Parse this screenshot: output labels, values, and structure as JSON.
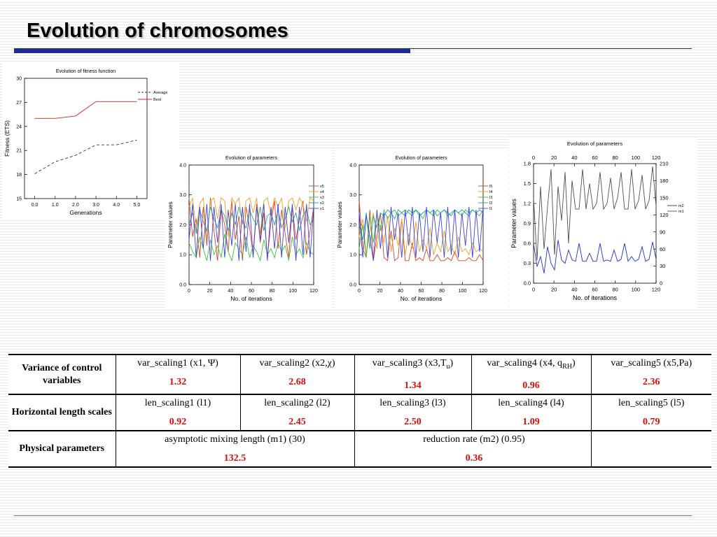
{
  "slide": {
    "title": "Evolution of chromosomes"
  },
  "chart_data": [
    {
      "id": "fitness",
      "type": "line",
      "title": "Evolution of fitness function",
      "xlabel": "Generations",
      "ylabel": "Fitness (ETS)",
      "xlim": [
        -0.5,
        5.5
      ],
      "ylim": [
        15,
        30
      ],
      "xticks": [
        "0.0",
        "1.0",
        "2.0",
        "3.0",
        "4.0",
        "5.0"
      ],
      "yticks": [
        "15",
        "18",
        "21",
        "24",
        "27",
        "30"
      ],
      "legend": "top-right",
      "series": [
        {
          "name": "Average",
          "color": "#333333",
          "dash": true,
          "x": [
            0,
            1,
            2,
            3,
            4,
            5
          ],
          "y": [
            18.1,
            19.6,
            20.4,
            21.7,
            21.7,
            22.3
          ]
        },
        {
          "name": "Best",
          "color": "#e02020",
          "dash": false,
          "x": [
            0,
            1,
            2,
            3,
            4,
            5
          ],
          "y": [
            25.0,
            25.0,
            25.3,
            27.1,
            27.1,
            27.1
          ]
        }
      ]
    },
    {
      "id": "params-x",
      "type": "line",
      "title": "Evolution of parameters",
      "xlabel": "No. of iterations",
      "ylabel": "Parameter values",
      "xlim": [
        0,
        120
      ],
      "ylim": [
        0,
        4.0
      ],
      "xticks": [
        "0",
        "20",
        "40",
        "60",
        "80",
        "100",
        "120"
      ],
      "yticks": [
        "0.0",
        "1.0",
        "2.0",
        "3.0",
        "4.0"
      ],
      "legend": "right",
      "series": [
        {
          "name": "x5",
          "color": "#e04020",
          "values": [
            2.9,
            1.6,
            2.2,
            0.9,
            2.6,
            1.3,
            2.9,
            1.8,
            0.8,
            2.5,
            2.0,
            1.1,
            2.8,
            1.5,
            2.3,
            0.8,
            2.6,
            1.9,
            1.0,
            2.7,
            1.4,
            2.4,
            0.9,
            2.1,
            2.8,
            1.2,
            2.5,
            1.7,
            0.9,
            2.6,
            1.5,
            2.2,
            2.8,
            1.0,
            1.8,
            2.6
          ]
        },
        {
          "name": "x4",
          "color": "#f0a020",
          "values": [
            2.6,
            2.9,
            1.8,
            2.7,
            2.9,
            1.5,
            2.8,
            2.9,
            2.2,
            2.9,
            2.8,
            1.6,
            2.9,
            2.7,
            2.9,
            2.0,
            2.8,
            2.9,
            2.4,
            2.9,
            1.7,
            2.8,
            2.9,
            2.3,
            2.9,
            2.6,
            2.9,
            1.9,
            2.8,
            2.9,
            2.5,
            2.9,
            2.7,
            2.1,
            2.9,
            2.8
          ]
        },
        {
          "name": "x3",
          "color": "#40c040",
          "values": [
            1.4,
            1.1,
            0.9,
            1.6,
            1.2,
            0.8,
            1.5,
            1.0,
            1.3,
            0.9,
            1.7,
            1.1,
            0.8,
            1.4,
            1.2,
            1.0,
            1.6,
            0.9,
            1.3,
            1.1,
            0.8,
            1.5,
            1.0,
            1.2,
            0.9,
            1.4,
            1.1,
            1.3,
            0.8,
            1.6,
            1.0,
            1.2,
            0.9,
            1.4,
            1.1,
            1.0
          ]
        },
        {
          "name": "x2",
          "color": "#20a0a0",
          "values": [
            2.0,
            2.4,
            1.7,
            2.5,
            2.1,
            1.8,
            2.6,
            2.2,
            1.9,
            2.5,
            2.3,
            1.8,
            2.4,
            2.0,
            2.6,
            2.1,
            1.9,
            2.5,
            2.2,
            2.0,
            2.6,
            1.8,
            2.3,
            2.4,
            2.0,
            2.5,
            1.9,
            2.2,
            2.6,
            2.1,
            2.4,
            1.8,
            2.3,
            2.5,
            2.0,
            2.2
          ]
        },
        {
          "name": "x1",
          "color": "#4040e0",
          "values": [
            1.5,
            2.7,
            0.9,
            2.6,
            1.2,
            2.7,
            0.8,
            2.6,
            1.4,
            2.7,
            0.9,
            2.5,
            1.3,
            2.7,
            0.8,
            2.6,
            1.1,
            2.7,
            0.9,
            2.6,
            1.5,
            2.7,
            0.8,
            2.6,
            1.2,
            2.7,
            0.9,
            2.6,
            1.4,
            2.7,
            0.8,
            2.6,
            1.0,
            2.7,
            0.9,
            2.6
          ]
        }
      ]
    },
    {
      "id": "params-l",
      "type": "line",
      "title": "Evolution of parameters",
      "xlabel": "No. of iterations",
      "ylabel": "Parameter values",
      "xlim": [
        0,
        120
      ],
      "ylim": [
        0,
        4.0
      ],
      "xticks": [
        "0",
        "20",
        "40",
        "60",
        "80",
        "100",
        "120"
      ],
      "yticks": [
        "0.0",
        "1.0",
        "2.0",
        "3.0",
        "4.0"
      ],
      "legend": "right",
      "series": [
        {
          "name": "l5",
          "color": "#e04020",
          "values": [
            2.8,
            1.2,
            0.9,
            2.5,
            0.8,
            1.6,
            2.4,
            0.9,
            0.8,
            1.8,
            0.8,
            0.9,
            2.2,
            0.8,
            0.8,
            1.4,
            0.8,
            0.9,
            0.8,
            1.2,
            0.8,
            0.8,
            1.0,
            0.8,
            0.8,
            0.9,
            0.8,
            1.1,
            0.8,
            0.8,
            0.8,
            0.9,
            0.8,
            0.8,
            1.0,
            0.8
          ]
        },
        {
          "name": "l4",
          "color": "#f0a020",
          "values": [
            1.6,
            2.2,
            1.0,
            1.8,
            2.4,
            1.2,
            2.0,
            1.4,
            2.3,
            1.1,
            1.9,
            1.3,
            2.2,
            1.0,
            1.7,
            1.2,
            2.1,
            1.1,
            1.5,
            1.2,
            1.9,
            1.0,
            1.4,
            1.1,
            1.8,
            1.1,
            1.3,
            1.0,
            1.6,
            1.1,
            1.2,
            1.0,
            1.4,
            1.1,
            1.2,
            1.1
          ]
        },
        {
          "name": "l3",
          "color": "#40c040",
          "values": [
            1.2,
            2.0,
            0.9,
            2.3,
            1.4,
            2.4,
            1.8,
            2.5,
            2.2,
            2.4,
            2.5,
            2.3,
            2.4,
            2.5,
            2.4,
            2.3,
            2.5,
            2.4,
            2.2,
            2.5,
            2.4,
            2.3,
            2.5,
            2.4,
            2.5,
            2.3,
            2.4,
            2.5,
            2.4,
            2.3,
            2.5,
            2.4,
            2.5,
            2.4,
            2.3,
            2.5
          ]
        },
        {
          "name": "l2",
          "color": "#20a0a0",
          "values": [
            2.0,
            1.5,
            2.4,
            1.2,
            2.3,
            1.9,
            2.4,
            2.3,
            2.5,
            2.4,
            2.2,
            2.5,
            2.4,
            2.3,
            2.5,
            2.4,
            2.5,
            2.3,
            2.4,
            2.5,
            2.4,
            2.5,
            2.3,
            2.4,
            2.5,
            2.4,
            2.3,
            2.5,
            2.4,
            2.5,
            2.4,
            2.3,
            2.5,
            2.4,
            2.5,
            2.4
          ]
        },
        {
          "name": "l1",
          "color": "#4040e0",
          "values": [
            2.4,
            0.9,
            2.3,
            1.6,
            0.8,
            2.5,
            1.2,
            2.4,
            0.9,
            2.6,
            1.5,
            2.4,
            0.9,
            2.5,
            1.3,
            2.6,
            0.9,
            2.4,
            1.1,
            2.6,
            0.9,
            2.5,
            1.4,
            2.4,
            0.9,
            2.6,
            1.0,
            2.5,
            0.9,
            2.4,
            1.3,
            2.6,
            0.9,
            2.5,
            1.1,
            2.6
          ]
        }
      ]
    },
    {
      "id": "params-m",
      "type": "line",
      "title": "Evolution of parameters",
      "xlabel": "No. of iterations",
      "ylabel": "Parameter values",
      "xlim": [
        0,
        120
      ],
      "ylim": [
        0,
        1.8
      ],
      "y2lim": [
        0,
        210
      ],
      "xticks": [
        "0",
        "20",
        "40",
        "60",
        "80",
        "100",
        "120"
      ],
      "yticks": [
        "0.0",
        "0.3",
        "0.6",
        "0.9",
        "1.2",
        "1.5",
        "1.8"
      ],
      "y2ticks": [
        "0",
        "30",
        "60",
        "90",
        "120",
        "150",
        "180",
        "210"
      ],
      "legend": "right",
      "series": [
        {
          "name": "m2",
          "color": "#2030d0",
          "axis": "left",
          "values": [
            0.6,
            0.25,
            0.4,
            0.15,
            0.55,
            0.3,
            0.2,
            0.65,
            0.35,
            0.3,
            0.5,
            0.35,
            0.33,
            0.6,
            0.33,
            0.33,
            0.45,
            0.33,
            0.33,
            0.6,
            0.33,
            0.35,
            0.33,
            0.5,
            0.33,
            0.36,
            0.6,
            0.33,
            0.4,
            0.33,
            0.36,
            0.55,
            0.33,
            0.36,
            0.62,
            0.36
          ]
        },
        {
          "name": "m1",
          "color": "#505050",
          "axis": "right",
          "values": [
            150,
            40,
            170,
            60,
            135,
            200,
            50,
            170,
            110,
            195,
            70,
            180,
            130,
            130,
            200,
            130,
            175,
            130,
            140,
            195,
            130,
            140,
            185,
            130,
            150,
            195,
            130,
            130,
            200,
            130,
            145,
            190,
            130,
            145,
            205,
            135
          ]
        }
      ]
    }
  ],
  "table": {
    "rows": [
      {
        "header": "Variance of control variables",
        "cells": [
          {
            "label_html": "var_scaling1 (x1, &Psi;)",
            "value": "1.32"
          },
          {
            "label_html": "var_scaling2 (x2,&chi;)",
            "value": "2.68"
          },
          {
            "label_html": "var_scaling3 (x3,T<sub>u</sub>)",
            "value": "1.34"
          },
          {
            "label_html": "var_scaling4 (x4, q<sub>RH</sub>)",
            "value": "0.96"
          },
          {
            "label_html": "var_scaling5 (x5,Pa)",
            "value": "2.36"
          }
        ]
      },
      {
        "header": "Horizontal length scales",
        "cells": [
          {
            "label": "len_scaling1 (l1)",
            "value": "0.92"
          },
          {
            "label": "len_scaling2 (l2)",
            "value": "2.45"
          },
          {
            "label": "len_scaling3 (l3)",
            "value": "2.50"
          },
          {
            "label": "len_scaling4 (l4)",
            "value": "1.09"
          },
          {
            "label": "len_scaling5 (l5)",
            "value": "0.79"
          }
        ]
      },
      {
        "header": "Physical parameters",
        "cells": [
          {
            "label": "asymptotic mixing length (m1) (30)",
            "value": "132.5"
          },
          {
            "label": "reduction rate (m2) (0.95)",
            "value": "0.36"
          }
        ]
      }
    ]
  }
}
